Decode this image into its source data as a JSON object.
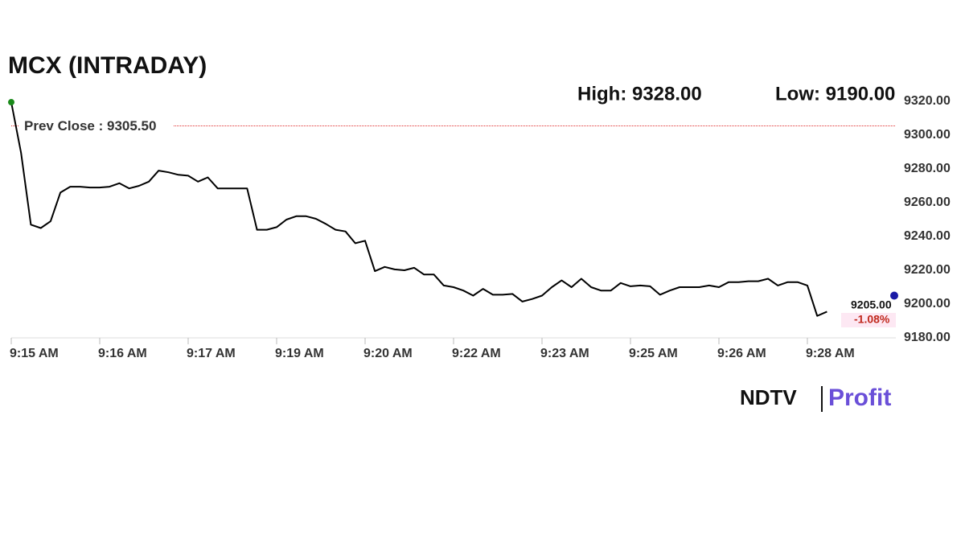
{
  "chart_data": {
    "type": "line",
    "title": "MCX (INTRADAY)",
    "high_text": "High: 9328.00",
    "low_text": "Low: 9190.00",
    "prev_close": {
      "value": 9305.5,
      "label": "Prev Close : 9305.50",
      "color": "#e03030"
    },
    "last_price": {
      "value": 9205,
      "label": "9205.00",
      "color": "#1a1aa6"
    },
    "change_label": "-1.08%",
    "series": [
      {
        "name": "MCX",
        "color": "#000000",
        "values": [
          9319.5,
          9289.5,
          9247,
          9245,
          9249,
          9266,
          9269.5,
          9269.5,
          9269,
          9269,
          9269.5,
          9271.5,
          9268.5,
          9270,
          9272.5,
          9279,
          9278,
          9276.5,
          9276,
          9272.5,
          9275,
          9268.5,
          9268.5,
          9268.5,
          9268.5,
          9244,
          9244,
          9245.5,
          9250,
          9252,
          9252,
          9250.5,
          9247.5,
          9244,
          9243,
          9236,
          9237.5,
          9219.5,
          9222,
          9220.5,
          9220,
          9221.5,
          9217.5,
          9217.5,
          9211,
          9210,
          9208,
          9205,
          9209,
          9205.5,
          9205.5,
          9206,
          9201.5,
          9203,
          9205,
          9210,
          9214,
          9210,
          9215,
          9210,
          9208,
          9208,
          9212.5,
          9210.5,
          9211,
          9210.5,
          9205.5,
          9208,
          9210,
          9210,
          9210,
          9211,
          9210,
          9213,
          9213,
          9213.5,
          9213.5,
          9215,
          9211,
          9213,
          9213,
          9211,
          9193,
          9195.5
        ]
      }
    ],
    "start_color": "#1a8a1a",
    "xlim": [
      0,
      90
    ],
    "xticks": [
      {
        "value": 0,
        "label": "9:15 AM"
      },
      {
        "value": 9,
        "label": "9:16 AM"
      },
      {
        "value": 18,
        "label": "9:17 AM"
      },
      {
        "value": 27,
        "label": "9:19 AM"
      },
      {
        "value": 36,
        "label": "9:20 AM"
      },
      {
        "value": 45,
        "label": "9:22 AM"
      },
      {
        "value": 54,
        "label": "9:23 AM"
      },
      {
        "value": 63,
        "label": "9:25 AM"
      },
      {
        "value": 72,
        "label": "9:26 AM"
      },
      {
        "value": 81,
        "label": "9:28 AM"
      }
    ],
    "ylim": [
      9180,
      9320
    ],
    "yticks": [
      {
        "value": 9180,
        "label": "9180.00"
      },
      {
        "value": 9200,
        "label": "9200.00"
      },
      {
        "value": 9220,
        "label": "9220.00"
      },
      {
        "value": 9240,
        "label": "9240.00"
      },
      {
        "value": 9260,
        "label": "9260.00"
      },
      {
        "value": 9280,
        "label": "9280.00"
      },
      {
        "value": 9300,
        "label": "9300.00"
      },
      {
        "value": 9320,
        "label": "9320.00"
      }
    ],
    "logo": {
      "left": "NDTV",
      "right": "Profit"
    }
  }
}
